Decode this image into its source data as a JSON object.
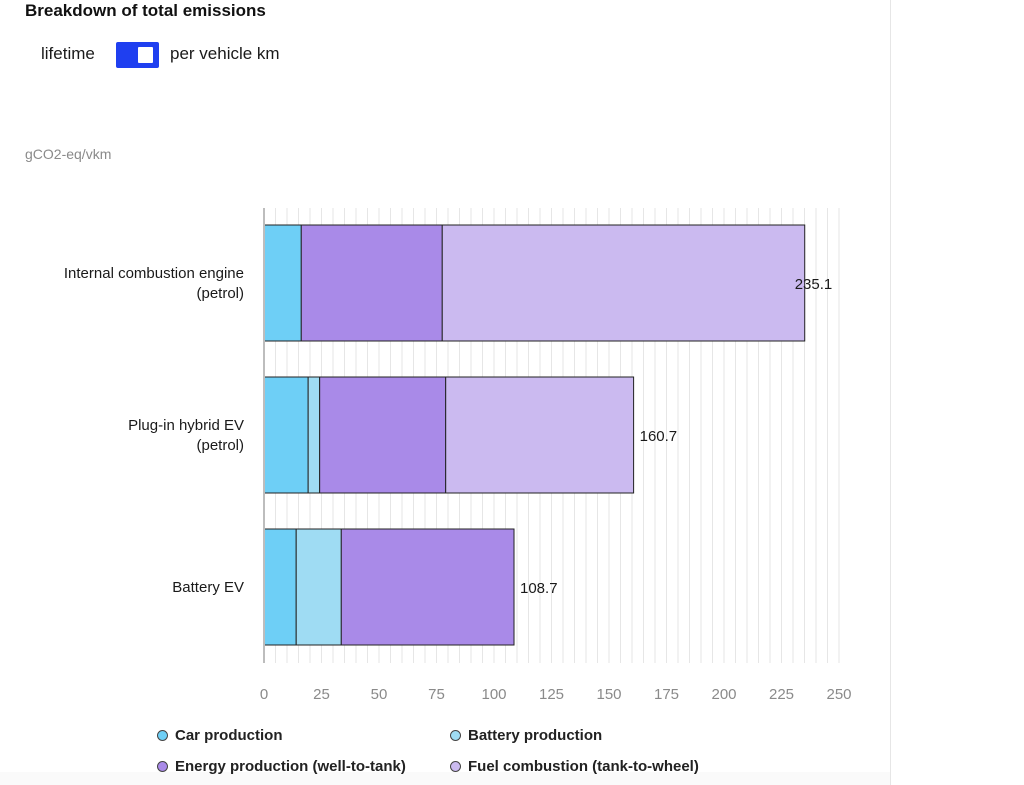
{
  "page": {
    "title": "Breakdown of total emissions",
    "toggle": {
      "left_label": "lifetime",
      "right_label": "per vehicle km",
      "selected": "per vehicle km"
    },
    "unit_label": "gCO2-eq/vkm"
  },
  "chart_data": {
    "type": "bar",
    "orientation": "horizontal",
    "stacked": true,
    "title": "Breakdown of total emissions",
    "xlabel": "",
    "ylabel": "gCO2-eq/vkm",
    "xlim": [
      0,
      250
    ],
    "x_ticks": [
      0,
      25,
      50,
      75,
      100,
      125,
      150,
      175,
      200,
      225,
      250
    ],
    "grid": "vertical",
    "legend_position": "bottom",
    "categories": [
      "Internal combustion engine (petrol)",
      "Plug-in hybrid EV (petrol)",
      "Battery EV"
    ],
    "category_lines": [
      [
        "Internal combustion engine",
        "(petrol)"
      ],
      [
        "Plug-in hybrid EV",
        "(petrol)"
      ],
      [
        "Battery EV"
      ]
    ],
    "series": [
      {
        "name": "Car production",
        "color": "#6ecff6",
        "values": [
          16.2,
          19.2,
          14.0
        ]
      },
      {
        "name": "Battery production",
        "color": "#9fdcf3",
        "values": [
          0,
          5.0,
          19.6
        ]
      },
      {
        "name": "Energy production (well-to-tank)",
        "color": "#a98ae8",
        "values": [
          61.3,
          54.8,
          75.1
        ]
      },
      {
        "name": "Fuel combustion (tank-to-wheel)",
        "color": "#cbbaf0",
        "values": [
          157.6,
          81.7,
          0
        ]
      }
    ],
    "totals": [
      235.1,
      160.7,
      108.7
    ],
    "total_labels": [
      "235.1",
      "160.7",
      "108.7"
    ]
  }
}
